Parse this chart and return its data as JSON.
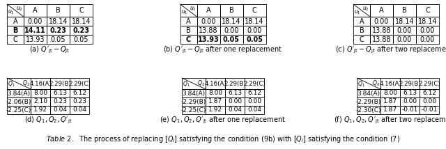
{
  "top_tables": [
    {
      "header_row": [
        "",
        "A",
        "B",
        "C"
      ],
      "rows": [
        [
          "A",
          "0.00",
          "18.14",
          "18.14"
        ],
        [
          "B",
          "14.11",
          "0.23",
          "0.23"
        ],
        [
          "C",
          "13.93",
          "0.05",
          "0.05"
        ]
      ],
      "bold_rows": [
        1
      ],
      "caption_a": "(a) ",
      "caption_b": "Q'_jt - Q_jt"
    },
    {
      "header_row": [
        "",
        "A",
        "B",
        "C"
      ],
      "rows": [
        [
          "A",
          "0.00",
          "18.14",
          "18.14"
        ],
        [
          "B",
          "13.88",
          "0.00",
          "0.00"
        ],
        [
          "C",
          "13.93",
          "0.05",
          "0.05"
        ]
      ],
      "bold_rows": [
        2
      ],
      "caption_a": "(b) ",
      "caption_b": "Q'_jt - Q_jt after one replacement"
    },
    {
      "header_row": [
        "",
        "A",
        "B",
        "C"
      ],
      "rows": [
        [
          "A",
          "0.00",
          "18.14",
          "18.14"
        ],
        [
          "B",
          "13.88",
          "0.00",
          "0.00"
        ],
        [
          "C",
          "13.88",
          "0.00",
          "0.00"
        ]
      ],
      "bold_rows": [],
      "caption_a": "(c) ",
      "caption_b": "Q'_jt - Q_jt after two replacements"
    }
  ],
  "bottom_tables": [
    {
      "header_row": [
        "",
        "4.16(A)",
        "2.29(B)",
        "2.29(C)"
      ],
      "rows": [
        [
          "3.84(A)",
          "8.00",
          "6.13",
          "6.12"
        ],
        [
          "-2.06(B)",
          "2.10",
          "0.23",
          "0.23"
        ],
        [
          "-2.25(C)",
          "1.92",
          "0.04",
          "0.04"
        ]
      ],
      "bold_rows": [],
      "caption_a": "(d) ",
      "caption_b": "Q1, Q2, Q'_jt"
    },
    {
      "header_row": [
        "",
        "4.16(A)",
        "2.29(B)",
        "2.29(C)"
      ],
      "rows": [
        [
          "3.84(A)",
          "8.00",
          "6.13",
          "6.12"
        ],
        [
          "-2.29(B)",
          "1.87",
          "0.00",
          "0.00"
        ],
        [
          "-2.25(C)",
          "1.92",
          "0.04",
          "0.04"
        ]
      ],
      "bold_rows": [],
      "caption_a": "(e) ",
      "caption_b": "Q1, Q2, Q'_jt after one replacement"
    },
    {
      "header_row": [
        "",
        "4.16(A)",
        "2.29(B)",
        "2.29(C)"
      ],
      "rows": [
        [
          "3.84(A)",
          "8.00",
          "6.13",
          "6.12"
        ],
        [
          "-2.29(B)",
          "1.87",
          "0.00",
          "0.00"
        ],
        [
          "-2.30(C)",
          "1.87",
          "-0.01",
          "-0.01"
        ]
      ],
      "bold_rows": [],
      "caption_a": "(f) ",
      "caption_b": "Q1, Q2, Q'_jt after two replacements"
    }
  ]
}
